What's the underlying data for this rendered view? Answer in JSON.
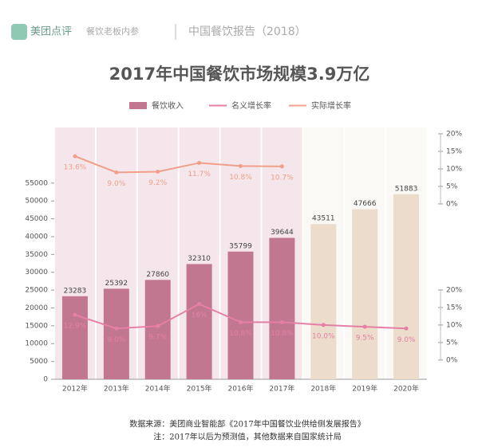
{
  "header": {
    "brand": "美团点评",
    "partner": "餐饮老板内参",
    "report": "中国餐饮报告（2018）"
  },
  "chart_data": {
    "type": "bar-line",
    "title": "2017年中国餐饮市场规模3.9万亿",
    "categories": [
      "2012年",
      "2013年",
      "2014年",
      "2015年",
      "2016年",
      "2017年",
      "2018年",
      "2019年",
      "2020年"
    ],
    "series": [
      {
        "name": "餐饮收入",
        "type": "bar",
        "colors": [
          "#c27791",
          "#c27791",
          "#c27791",
          "#c27791",
          "#c27791",
          "#c27791",
          "#ebdccb",
          "#ebdccb",
          "#ebdccb"
        ],
        "values": [
          23283,
          25392,
          27860,
          32310,
          35799,
          39644,
          43511,
          47666,
          51883
        ]
      },
      {
        "name": "名义增长率",
        "type": "line",
        "color": "#e57fa6",
        "axis": "y3",
        "values": [
          12.9,
          9.0,
          9.7,
          16,
          10.8,
          10.8,
          10.0,
          9.5,
          9.0
        ],
        "value_labels": [
          "12.9%",
          "9.0%",
          "9.7%",
          "16%",
          "10.8%",
          "10.8%",
          "10.0%",
          "9.5%",
          "9.0%"
        ]
      },
      {
        "name": "实际增长率",
        "type": "line",
        "color": "#f0a08a",
        "axis": "y2",
        "values": [
          13.6,
          9.0,
          9.2,
          11.7,
          10.8,
          10.7,
          null,
          null,
          null
        ],
        "value_labels": [
          "13.6%",
          "9.0%",
          "9.2%",
          "11.7%",
          "10.8%",
          "10.7%",
          null,
          null,
          null
        ]
      }
    ],
    "ylim": [
      0,
      70600
    ],
    "yticks": [
      0,
      5000,
      10000,
      15000,
      20000,
      25000,
      30000,
      35000,
      40000,
      45000,
      50000,
      55000
    ],
    "y2lim": [
      -50,
      21.8
    ],
    "y2ticks": [
      {
        "value": 0,
        "label": "0%"
      },
      {
        "value": 5,
        "label": "5%"
      },
      {
        "value": 10,
        "label": "10%"
      },
      {
        "value": 15,
        "label": "15%"
      },
      {
        "value": 20,
        "label": "20%"
      }
    ],
    "y3lim": [
      -5.5,
      66.4
    ],
    "y3ticks": [
      {
        "value": 0,
        "label": "0%"
      },
      {
        "value": 5,
        "label": "5%"
      },
      {
        "value": 10,
        "label": "10%"
      },
      {
        "value": 15,
        "label": "15%"
      },
      {
        "value": 20,
        "label": "20%"
      }
    ],
    "source": "数据来源：美团商业智能部《2017年中国餐饮业供给侧发展报告》",
    "note": "注：2017年以后为预测值，其他数据来自国家统计局"
  }
}
